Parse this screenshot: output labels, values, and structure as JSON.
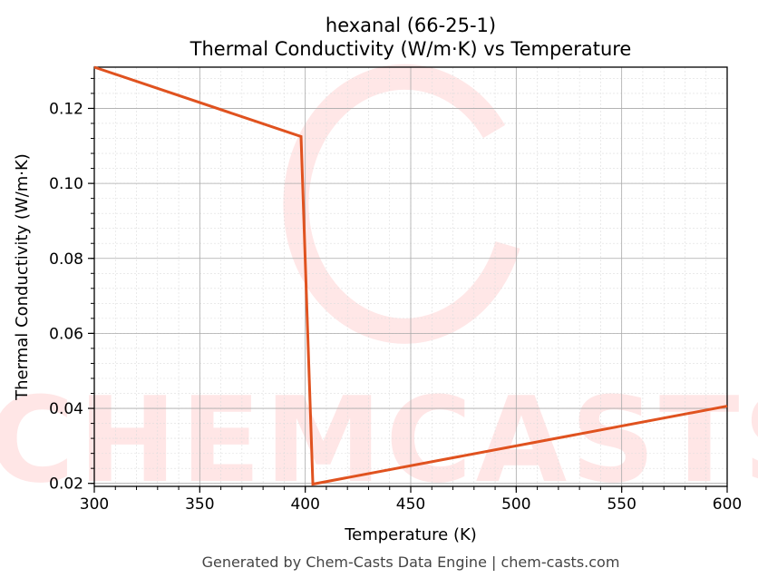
{
  "chart_data": {
    "type": "line",
    "title": "hexanal (66-25-1)",
    "subtitle": "Thermal Conductivity (W/m·K) vs Temperature",
    "xlabel": "Temperature (K)",
    "ylabel": "Thermal Conductivity (W/m·K)",
    "xlim": [
      300,
      600
    ],
    "ylim": [
      0.0192,
      0.131
    ],
    "xticks": [
      300,
      350,
      400,
      450,
      500,
      550,
      600
    ],
    "yticks": [
      0.02,
      0.04,
      0.06,
      0.08,
      0.1,
      0.12
    ],
    "ytick_labels": [
      "0.02",
      "0.04",
      "0.06",
      "0.08",
      "0.10",
      "0.12"
    ],
    "grid": true,
    "series": [
      {
        "x": [
          300,
          398,
          403.6,
          600
        ],
        "y": [
          0.131,
          0.1125,
          0.0198,
          0.0406
        ],
        "color": "#e0521f"
      }
    ]
  },
  "watermark": "CHEMCASTS",
  "footer": "Generated by Chem-Casts Data Engine | chem-casts.com"
}
